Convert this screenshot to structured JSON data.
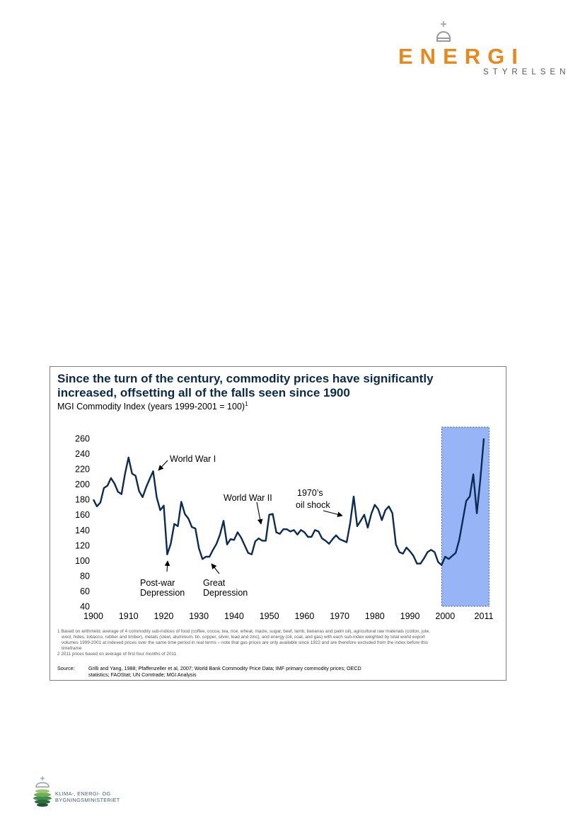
{
  "header_logo": {
    "word": "ENERGI",
    "sub": "STYRELSEN",
    "accent_color": "#e8891e"
  },
  "chart_data": {
    "type": "line",
    "title": "Since the turn of the century, commodity prices have significantly increased, offsetting all of the falls seen since 1900",
    "subtitle": "MGI Commodity Index (years 1999-2001 = 100)",
    "subtitle_footnote_mark": "1",
    "ylim": [
      40,
      260
    ],
    "xlim": [
      1900,
      2011
    ],
    "yticks": [
      "260",
      "240",
      "220",
      "200",
      "180",
      "160",
      "140",
      "120",
      "100",
      "80",
      "60",
      "40"
    ],
    "xticks": [
      1900,
      1910,
      1920,
      1930,
      1940,
      1950,
      1960,
      1970,
      1980,
      1990,
      2000,
      2011
    ],
    "line_color": "#0b2a55",
    "highlight": {
      "from": 1999,
      "to": 2012.5,
      "color": "#97b5f6"
    },
    "series": [
      {
        "x": [
          1900,
          1901,
          1902,
          1903,
          1904,
          1905,
          1906,
          1907,
          1908,
          1909,
          1910,
          1911,
          1912,
          1913,
          1914,
          1915,
          1916,
          1917,
          1918,
          1919,
          1920,
          1921,
          1922,
          1923,
          1924,
          1925,
          1926,
          1927,
          1928,
          1929,
          1930,
          1931,
          1932,
          1933,
          1934,
          1935,
          1936,
          1937,
          1938,
          1939,
          1940,
          1941,
          1942,
          1943,
          1944,
          1945,
          1946,
          1947,
          1948,
          1949,
          1950,
          1951,
          1952,
          1953,
          1954,
          1955,
          1956,
          1957,
          1958,
          1959,
          1960,
          1961,
          1962,
          1963,
          1964,
          1965,
          1966,
          1967,
          1968,
          1969,
          1970,
          1971,
          1972,
          1973,
          1974,
          1975,
          1976,
          1977,
          1978,
          1979,
          1980,
          1981,
          1982,
          1983,
          1984,
          1985,
          1986,
          1987,
          1988,
          1989,
          1990,
          1991,
          1992,
          1993,
          1994,
          1995,
          1996,
          1997,
          1998,
          1999,
          2000,
          2001,
          2002,
          2003,
          2004,
          2005,
          2006,
          2007,
          2008,
          2009,
          2010,
          2011
        ],
        "values": [
          180,
          171,
          176,
          195,
          198,
          208,
          201,
          190,
          187,
          214,
          235,
          214,
          211,
          191,
          183,
          196,
          207,
          217,
          183,
          166,
          172,
          108,
          122,
          148,
          145,
          177,
          161,
          155,
          144,
          142,
          116,
          102,
          105,
          105,
          114,
          122,
          134,
          152,
          121,
          128,
          127,
          137,
          130,
          120,
          110,
          108,
          125,
          129,
          126,
          126,
          160,
          161,
          137,
          135,
          141,
          141,
          138,
          140,
          134,
          140,
          137,
          131,
          131,
          140,
          138,
          129,
          126,
          122,
          128,
          133,
          128,
          126,
          124,
          149,
          184,
          145,
          152,
          160,
          143,
          161,
          173,
          167,
          153,
          166,
          171,
          162,
          121,
          111,
          109,
          117,
          112,
          106,
          96,
          96,
          103,
          111,
          114,
          111,
          98,
          94,
          105,
          102,
          106,
          110,
          127,
          153,
          178,
          184,
          213,
          162,
          206,
          260
        ]
      }
    ],
    "annotations": [
      {
        "text": "World War I"
      },
      {
        "text": "Post-war"
      },
      {
        "text": "Depression"
      },
      {
        "text": "Great"
      },
      {
        "text": "Depression"
      },
      {
        "text": "World War II"
      },
      {
        "text": "1970’s"
      },
      {
        "text": "oil shock"
      }
    ]
  },
  "footnotes": {
    "note1_lines": [
      "1 Based on arithmetic average of 4 commodity sub-indices of food (coffee, cocoa, tea, rice, wheat, maize, sugar, beef, lamb, bananas and palm oil), agricultural raw materials (cotton, jute,",
      "wool, hides, tobacco, rubber and timber), metals (steel, aluminum, tin, copper, silver, lead and zinc), and energy (oil, coal, and gas) with each sub-index weighted by total world export",
      "volumes 1999-2001 at indexed prices over the same time period in real terms – note that gas prices are only available since 1922 and are therefore excluded from the index before this",
      "timeframe"
    ],
    "note2": "2 2011 prices based on average of first four months of 2011"
  },
  "source": {
    "label": "Source:",
    "line1": "Grilli and Yang, 1988; Pfaffenzeller et al, 2007; World Bank Commodity Price Data; IMF primary commodity prices; OECD",
    "line2": "statistics; FAOStat; UN Comtrade; MGI Analysis"
  },
  "footer_logo": {
    "line1": "KLIMA-, ENERGI- OG",
    "line2": "BYGNINGSMINISTERIET"
  }
}
